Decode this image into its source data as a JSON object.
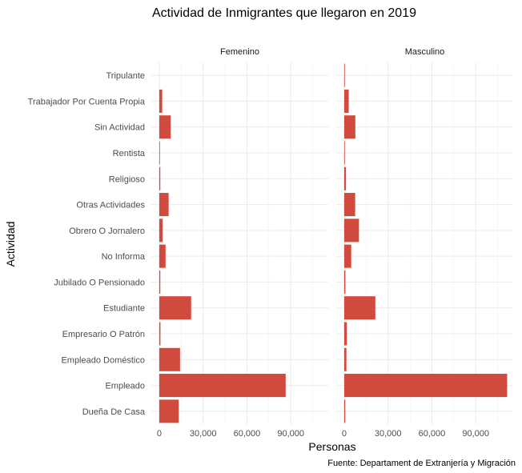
{
  "chart_data": {
    "type": "bar",
    "orientation": "horizontal",
    "title": "Actividad de Inmigrantes que llegaron en 2019",
    "xlabel": "Personas",
    "ylabel": "Actividad",
    "caption": "Fuente: Departament de Extranjería y Migración",
    "xlim": [
      0,
      112000
    ],
    "xticks": [
      0,
      30000,
      60000,
      90000
    ],
    "xtick_labels": [
      "0",
      "30,000",
      "60,000",
      "90,000"
    ],
    "bar_color": "#d04a3e",
    "grid": true,
    "categories": [
      "Tripulante",
      "Trabajador Por Cuenta Propia",
      "Sin Actividad",
      "Rentista",
      "Religioso",
      "Otras Actividades",
      "Obrero O Jornalero",
      "No Informa",
      "Jubilado O Pensionado",
      "Estudiante",
      "Empresario O Patrón",
      "Empleado Doméstico",
      "Empleado",
      "Dueña De Casa"
    ],
    "panels": [
      {
        "name": "Femenino",
        "values": [
          0,
          2000,
          7800,
          150,
          700,
          6400,
          2300,
          4300,
          700,
          21800,
          800,
          14200,
          86500,
          13300
        ]
      },
      {
        "name": "Masculino",
        "values": [
          300,
          3100,
          7600,
          150,
          1200,
          7500,
          10100,
          4800,
          800,
          21300,
          1800,
          1500,
          111500,
          700
        ]
      }
    ]
  }
}
